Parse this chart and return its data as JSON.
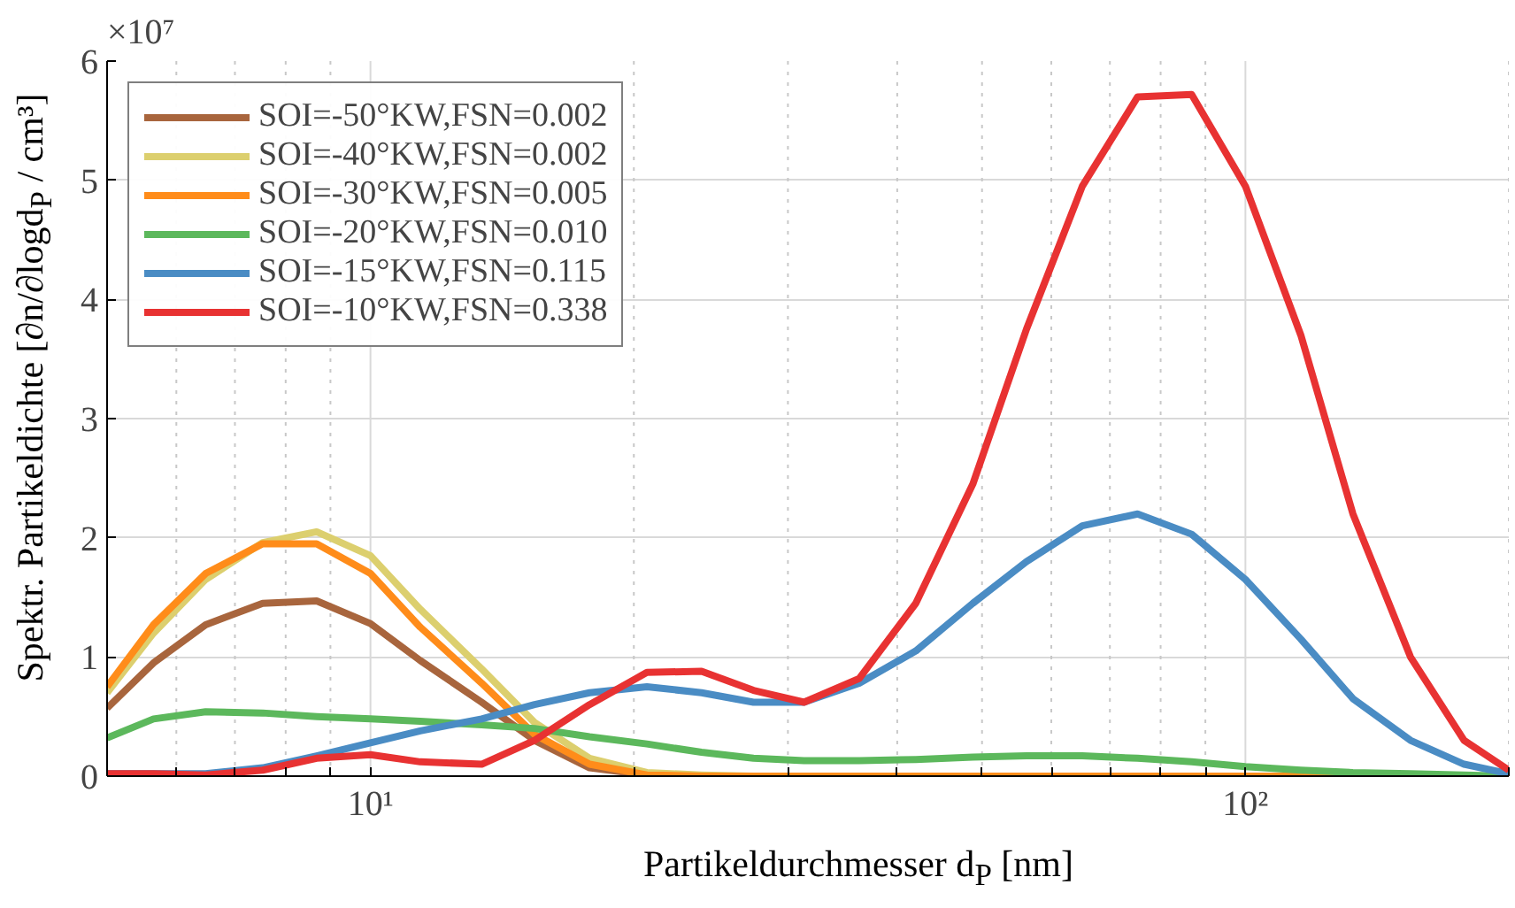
{
  "chart_data": {
    "type": "line",
    "xlabel": "Partikeldurchmesser d$_{P}$ [nm]",
    "ylabel": "Spektr. Partikeldichte [∂n/∂logd$_{P}$ / cm³]",
    "annotations": [
      "×10⁷"
    ],
    "log": "x",
    "xlim": [
      5,
      200
    ],
    "ylim": [
      0,
      6
    ],
    "xticks": [
      {
        "value": 6,
        "label": null
      },
      {
        "value": 7,
        "label": null
      },
      {
        "value": 8,
        "label": null
      },
      {
        "value": 9,
        "label": null
      },
      {
        "value": 10,
        "label": "10¹"
      },
      {
        "value": 20,
        "label": null
      },
      {
        "value": 30,
        "label": null
      },
      {
        "value": 40,
        "label": null
      },
      {
        "value": 50,
        "label": null
      },
      {
        "value": 60,
        "label": null
      },
      {
        "value": 70,
        "label": null
      },
      {
        "value": 80,
        "label": null
      },
      {
        "value": 90,
        "label": null
      },
      {
        "value": 100,
        "label": "10²"
      },
      {
        "value": 200,
        "label": null
      }
    ],
    "yticks": [
      0,
      1,
      2,
      3,
      4,
      5,
      6
    ],
    "grid": true,
    "legend": "top left",
    "line_style": "solid",
    "marker": "none",
    "x": [
      5.0,
      5.65,
      6.48,
      7.53,
      8.68,
      10,
      11.4,
      13.4,
      15.4,
      17.8,
      20.7,
      23.9,
      27.4,
      31.3,
      36.2,
      42.0,
      48.8,
      56.2,
      65.1,
      75.3,
      86.8,
      100,
      115.7,
      132.7,
      154.4,
      177.8,
      200
    ],
    "series": [
      {
        "name": "SOI=-50°KW,FSN=0.002",
        "color": "#a8653d",
        "values": [
          0.57,
          0.95,
          1.27,
          1.45,
          1.47,
          1.28,
          0.97,
          0.62,
          0.3,
          0.07,
          0.01,
          null,
          null,
          null,
          null,
          null,
          null,
          null,
          null,
          null,
          null,
          null,
          null,
          null,
          null,
          null,
          null
        ]
      },
      {
        "name": "SOI=-40°KW,FSN=0.002",
        "color": "#dccf6e",
        "values": [
          0.7,
          1.2,
          1.65,
          1.96,
          2.05,
          1.85,
          1.4,
          0.9,
          0.45,
          0.15,
          0.03,
          0.01,
          0,
          null,
          null,
          null,
          null,
          null,
          null,
          null,
          null,
          null,
          null,
          null,
          null,
          null,
          null
        ]
      },
      {
        "name": "SOI=-30°KW,FSN=0.005",
        "color": "#ff8c1a",
        "values": [
          0.75,
          1.27,
          1.7,
          1.95,
          1.95,
          1.7,
          1.25,
          0.78,
          0.35,
          0.1,
          0.01,
          0,
          0,
          0,
          0,
          0,
          0,
          0,
          0,
          0,
          0,
          0,
          0,
          0,
          0,
          null,
          null
        ]
      },
      {
        "name": "SOI=-20°KW,FSN=0.010",
        "color": "#5cb85c",
        "values": [
          0.32,
          0.48,
          0.54,
          0.53,
          0.5,
          0.48,
          0.46,
          0.43,
          0.4,
          0.33,
          0.27,
          0.2,
          0.15,
          0.13,
          0.13,
          0.14,
          0.16,
          0.17,
          0.17,
          0.15,
          0.12,
          0.08,
          0.05,
          0.03,
          0.02,
          0.01,
          0.0
        ]
      },
      {
        "name": "SOI=-15°KW,FSN=0.115",
        "color": "#4a8cc4",
        "values": [
          0.02,
          0.02,
          0.02,
          0.07,
          0.17,
          0.28,
          0.38,
          0.48,
          0.6,
          0.7,
          0.75,
          0.7,
          0.62,
          0.62,
          0.78,
          1.05,
          1.45,
          1.8,
          2.1,
          2.2,
          2.03,
          1.65,
          1.15,
          0.65,
          0.3,
          0.1,
          0.02
        ]
      },
      {
        "name": "SOI=-10°KW,FSN=0.338",
        "color": "#e83232",
        "values": [
          0.02,
          0.02,
          0.01,
          0.05,
          0.15,
          0.18,
          0.12,
          0.1,
          0.3,
          0.6,
          0.87,
          0.88,
          0.72,
          0.62,
          0.82,
          1.45,
          2.45,
          3.75,
          4.95,
          5.7,
          5.72,
          4.95,
          3.7,
          2.2,
          1.0,
          0.3,
          0.05
        ]
      }
    ]
  }
}
